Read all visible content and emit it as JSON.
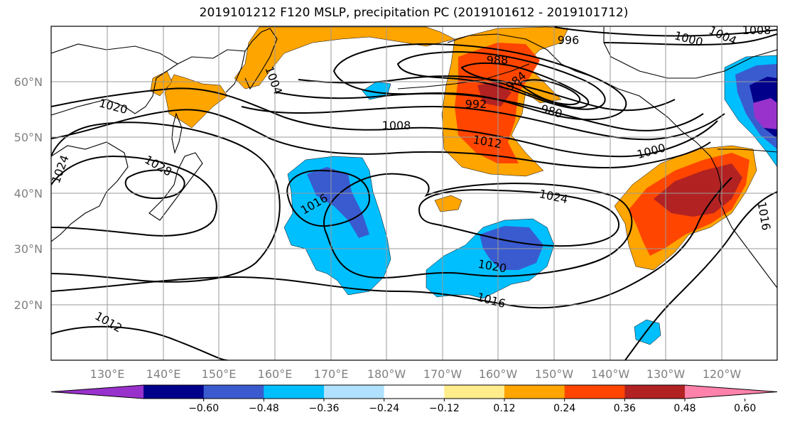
{
  "title": "2019101212 F120 MSLP, precipitation PC (2019101612 - 2019101712)",
  "latitude_labels": [
    "60°N",
    "50°N",
    "40°N",
    "30°N",
    "20°N"
  ],
  "longitude_labels": [
    "130°E",
    "140°E",
    "150°E",
    "160°E",
    "170°E",
    "180°W",
    "170°W",
    "160°W",
    "150°W",
    "140°W",
    "130°W",
    "120°W"
  ],
  "contour_labels": [
    "996",
    "1000",
    "1004",
    "1008",
    "988",
    "984",
    "992",
    "980",
    "1020",
    "1004",
    "1008",
    "1012",
    "1000",
    "1024",
    "1028",
    "1016",
    "1024",
    "1020",
    "1016",
    "1012",
    "1016"
  ],
  "colorbar": {
    "labels": [
      "−0.60",
      "−0.48",
      "−0.36",
      "−0.24",
      "−0.12",
      "0.12",
      "0.24",
      "0.36",
      "0.48",
      "0.60"
    ],
    "colors": [
      "#9932cc",
      "#00008b",
      "#3a5bcf",
      "#00bfff",
      "#b0e2ff",
      "#ffffff",
      "#ffec8b",
      "#ffa500",
      "#ff4500",
      "#b22222",
      "#ff82ab"
    ]
  }
}
